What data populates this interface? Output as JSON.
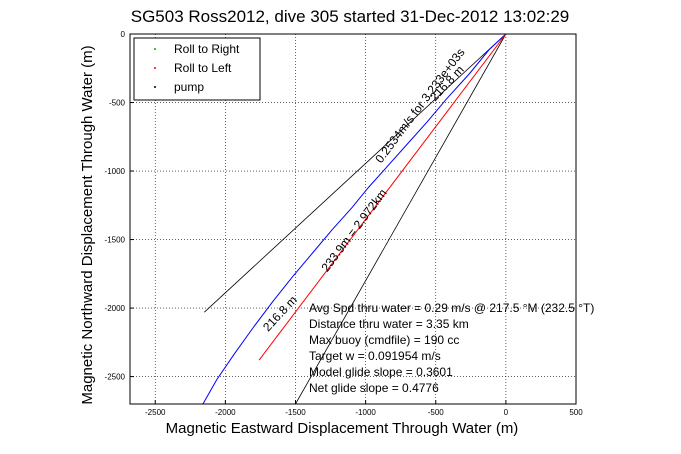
{
  "chart_data": {
    "type": "line",
    "title": "SG503 Ross2012, dive 305 started 31-Dec-2012 13:02:29",
    "xlabel": "Magnetic Eastward Displacement Through Water (m)",
    "ylabel": "Magnetic Northward Displacement Through Water (m)",
    "xlim": [
      -2680,
      500
    ],
    "ylim": [
      -2700,
      0
    ],
    "x_ticks": [
      "-2500",
      "-2000",
      "-1500",
      "-1000",
      "-500",
      "0",
      "500"
    ],
    "x_tick_values": [
      -2500,
      -2000,
      -1500,
      -1000,
      -500,
      0,
      500
    ],
    "y_ticks": [
      "0",
      "-500",
      "-1000",
      "-1500",
      "-2000",
      "-2500"
    ],
    "y_tick_values": [
      0,
      -500,
      -1000,
      -1500,
      -2000,
      -2500
    ],
    "grid": true,
    "legend_placement": "top-left",
    "legend": [
      {
        "label": "Roll to Right",
        "color": "#00aa00"
      },
      {
        "label": "Roll to Left",
        "color": "#ff0000"
      },
      {
        "label": "pump",
        "color": "#000000"
      }
    ],
    "series": [
      {
        "color": "#0000ff",
        "points": [
          [
            0,
            0
          ],
          [
            -120,
            -115
          ],
          [
            -260,
            -290
          ],
          [
            -420,
            -470
          ],
          [
            -560,
            -640
          ],
          [
            -700,
            -800
          ],
          [
            -840,
            -960
          ],
          [
            -980,
            -1120
          ],
          [
            -1100,
            -1270
          ],
          [
            -1240,
            -1430
          ],
          [
            -1380,
            -1600
          ],
          [
            -1520,
            -1770
          ],
          [
            -1660,
            -1950
          ],
          [
            -1800,
            -2140
          ],
          [
            -1940,
            -2340
          ],
          [
            -2060,
            -2520
          ],
          [
            -2160,
            -2700
          ]
        ]
      },
      {
        "color": "#ff0000",
        "points": [
          [
            0,
            0
          ],
          [
            -1760,
            -2380
          ]
        ]
      }
    ],
    "reference_lines": [
      {
        "color": "#000000",
        "points": [
          [
            0,
            0
          ],
          [
            -2150,
            -2030
          ]
        ]
      },
      {
        "color": "#000000",
        "points": [
          [
            0,
            0
          ],
          [
            -1500,
            -2700
          ]
        ]
      }
    ],
    "annotations": [
      {
        "text": "216.8 m",
        "x": -400,
        "y": -380,
        "angle": -47
      },
      {
        "text": "0.2534m/s for 3.233e+03s",
        "x": -590,
        "y": -540,
        "angle": -53
      },
      {
        "text": "233.9m = 2.972km",
        "x": -1060,
        "y": -1450,
        "angle": -53
      },
      {
        "text": "216.8 m",
        "x": -1590,
        "y": -2060,
        "angle": -47
      }
    ],
    "stats": [
      "Avg Spd thru water =  0.29 m/s @ 217.5   °M (232.5 °T)",
      "Distance thru water =  3.35 km",
      "Max buoy (cmdfile) = 190 cc",
      "Target w = 0.091954 m/s",
      "Model glide slope = 0.3601",
      "Net glide slope = 0.4776"
    ]
  }
}
